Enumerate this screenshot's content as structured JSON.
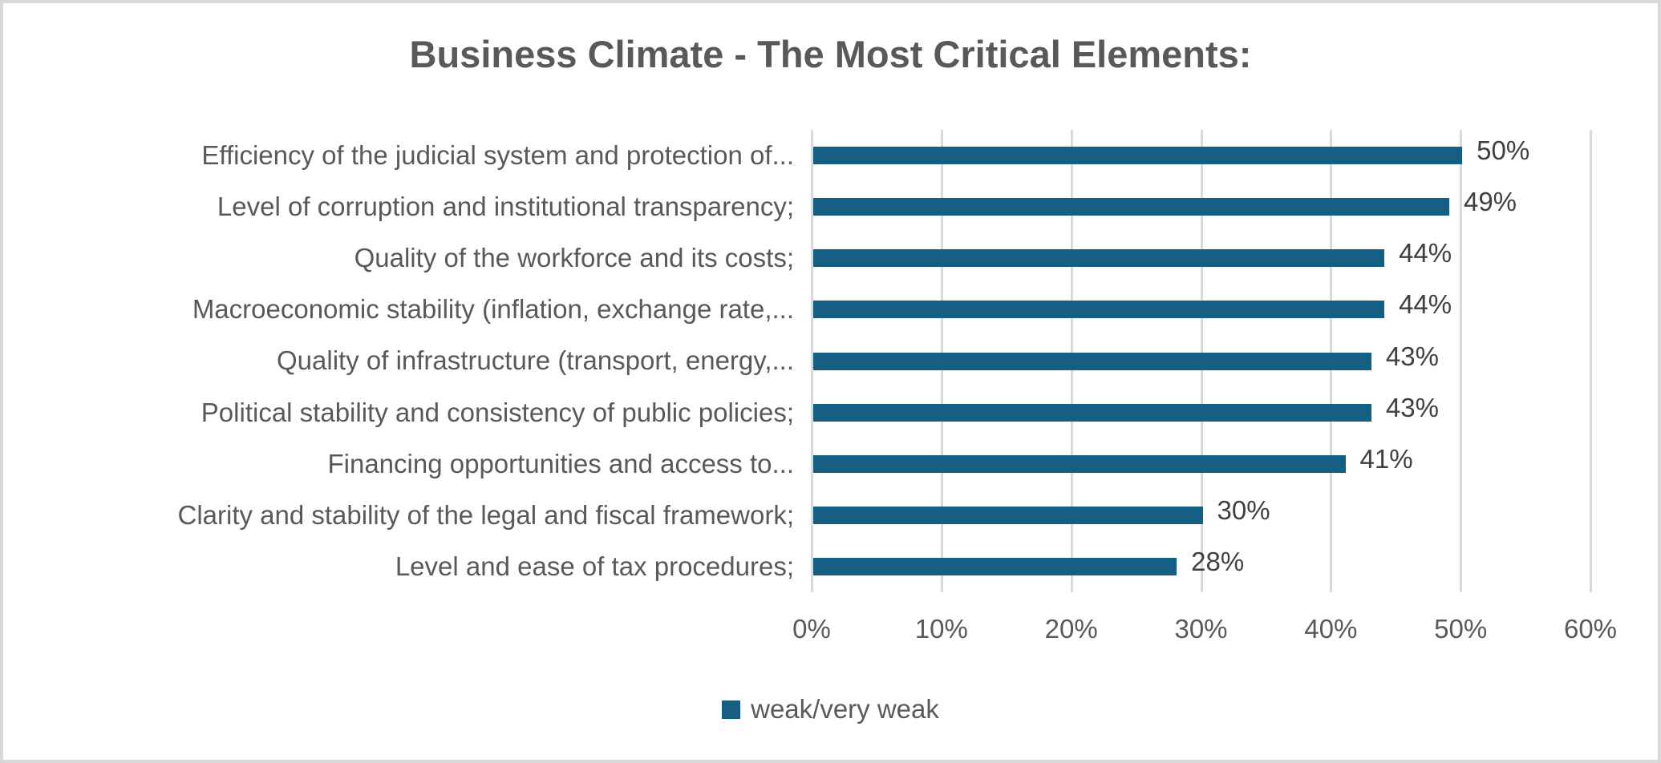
{
  "chart_data": {
    "type": "bar",
    "orientation": "horizontal",
    "title": "Business Climate - The Most Critical Elements:",
    "categories": [
      "Efficiency of the judicial system and protection of...",
      "Level of corruption and institutional transparency;",
      "Quality of the workforce and its costs;",
      "Macroeconomic stability (inflation, exchange rate,...",
      "Quality of infrastructure (transport, energy,...",
      "Political stability and consistency of public policies;",
      "Financing opportunities and access to...",
      "Clarity and stability of the legal and fiscal framework;",
      "Level and ease of tax procedures;"
    ],
    "series": [
      {
        "name": "weak/very weak",
        "values": [
          50,
          49,
          44,
          44,
          43,
          43,
          41,
          30,
          28
        ],
        "data_labels": [
          "50%",
          "49%",
          "44%",
          "44%",
          "43%",
          "43%",
          "41%",
          "30%",
          "28%"
        ]
      }
    ],
    "xlim": [
      0,
      60
    ],
    "x_tick_values": [
      0,
      10,
      20,
      30,
      40,
      50,
      60
    ],
    "x_tick_labels": [
      "0%",
      "10%",
      "20%",
      "30%",
      "40%",
      "50%",
      "60%"
    ],
    "grid": true,
    "legend_position": "bottom-center",
    "colors": {
      "bar": "#156082",
      "gridline": "#d9d9d9",
      "frame_border": "#d9d9d9",
      "title_text": "#595959",
      "axis_text": "#595959",
      "data_label_text": "#404040"
    }
  },
  "legend": {
    "label": "weak/very weak"
  }
}
